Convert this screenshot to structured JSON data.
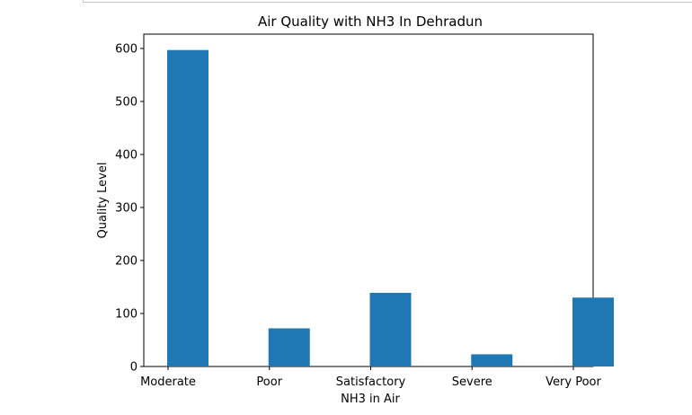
{
  "chart_data": {
    "type": "bar",
    "title": "Air Quality with NH3 In Dehradun",
    "xlabel": "NH3 in Air",
    "ylabel": "Quality Level",
    "categories": [
      "Moderate",
      "Poor",
      "Satisfactory",
      "Severe",
      "Very Poor"
    ],
    "values": [
      597,
      72,
      139,
      23,
      130
    ],
    "ylim": [
      0,
      627
    ],
    "yticks": [
      0,
      100,
      200,
      300,
      400,
      500,
      600
    ],
    "grid": false,
    "bar_color": "#1f77b4"
  }
}
